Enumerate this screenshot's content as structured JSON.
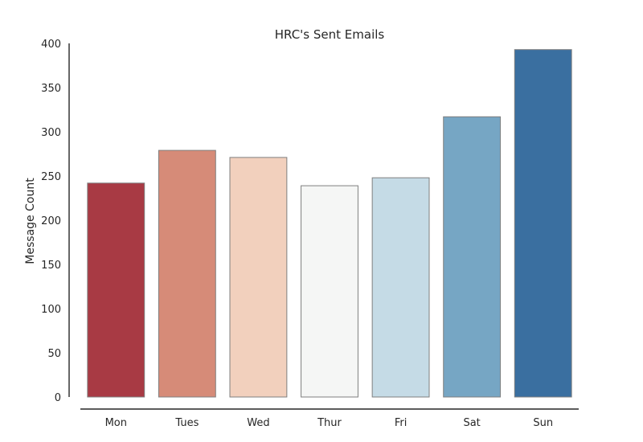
{
  "chart_data": {
    "type": "bar",
    "title": "HRC's Sent Emails",
    "xlabel": "",
    "ylabel": "Message Count",
    "categories": [
      "Mon",
      "Tues",
      "Wed",
      "Thur",
      "Fri",
      "Sat",
      "Sun"
    ],
    "values": [
      242,
      279,
      271,
      239,
      248,
      317,
      393
    ],
    "colors": [
      "#a83a44",
      "#d68b78",
      "#f2d0bd",
      "#f5f6f5",
      "#c5dbe6",
      "#76a6c4",
      "#3a6fa0"
    ],
    "ylim": [
      0,
      400
    ],
    "yticks": [
      0,
      50,
      100,
      150,
      200,
      250,
      300,
      350,
      400
    ],
    "grid": false,
    "legend": "none"
  }
}
